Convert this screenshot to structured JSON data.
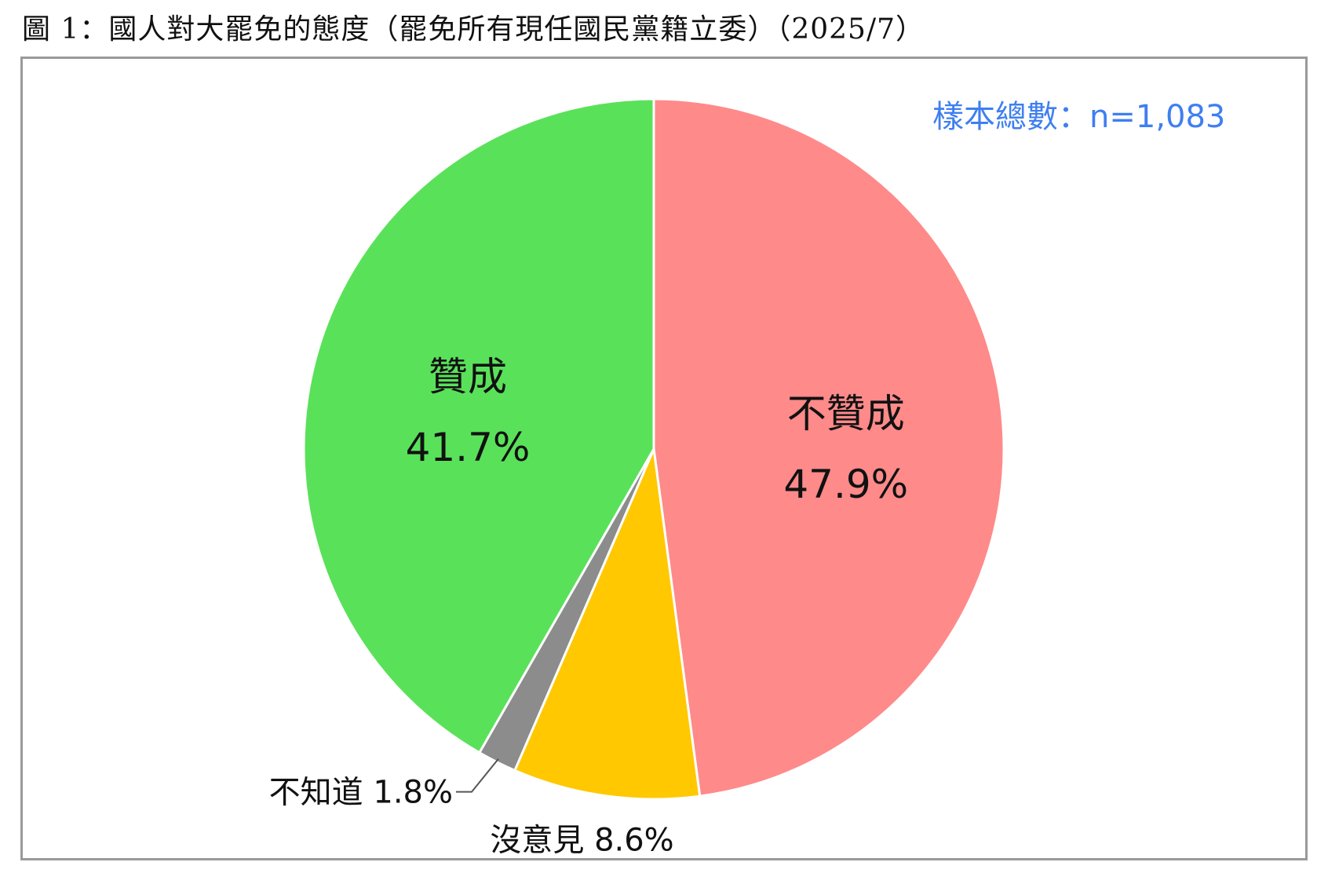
{
  "title": "圖 1：國人對大罷免的態度（罷免所有現任國民黨籍立委）（2025/7）",
  "sample_note": "樣本總數：n=1,083",
  "chart_data": {
    "type": "pie",
    "start_angle_deg": 0,
    "direction": "clockwise",
    "slices": [
      {
        "label": "不贊成",
        "value": 47.9,
        "value_label": "47.9%",
        "color": "#ff8a8a",
        "label_position": "inside"
      },
      {
        "label": "沒意見",
        "value": 8.6,
        "value_label": "8.6%",
        "color": "#ffc800",
        "label_position": "outside"
      },
      {
        "label": "不知道",
        "value": 1.8,
        "value_label": "1.8%",
        "color": "#8c8c8c",
        "label_position": "outside"
      },
      {
        "label": "贊成",
        "value": 41.7,
        "value_label": "41.7%",
        "color": "#5ae15a",
        "label_position": "inside"
      }
    ]
  }
}
